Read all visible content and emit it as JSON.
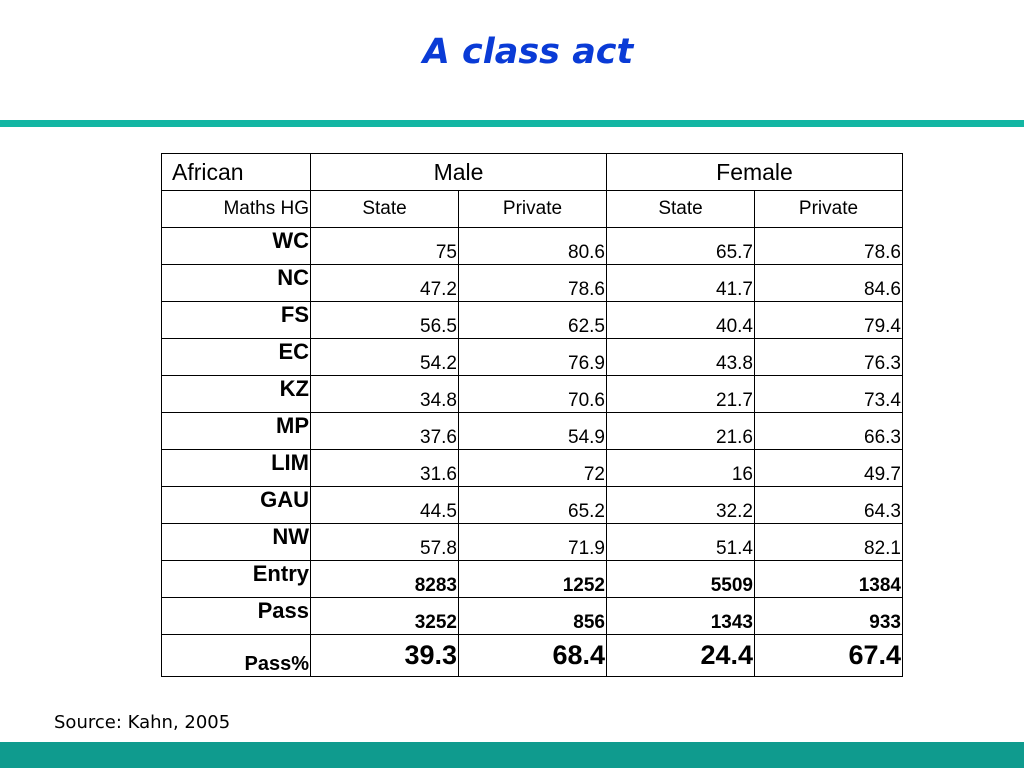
{
  "slide": {
    "title": "A class act",
    "source": "Source: Kahn, 2005",
    "colors": {
      "title": "#0a3bd6",
      "top_rule": "#13b6a3",
      "bottom_band": "#0f9b8e",
      "pass_counts": "#e10000",
      "pass_percent": "#0d8a0d"
    }
  },
  "table": {
    "corner_label": "African",
    "groups": [
      "Male",
      "Female"
    ],
    "subject_label": "Maths HG",
    "subheaders": [
      "State",
      "Private",
      "State",
      "Private"
    ],
    "rows": [
      {
        "label": "WC",
        "values": [
          "75",
          "80.6",
          "65.7",
          "78.6"
        ]
      },
      {
        "label": "NC",
        "values": [
          "47.2",
          "78.6",
          "41.7",
          "84.6"
        ]
      },
      {
        "label": "FS",
        "values": [
          "56.5",
          "62.5",
          "40.4",
          "79.4"
        ]
      },
      {
        "label": "EC",
        "values": [
          "54.2",
          "76.9",
          "43.8",
          "76.3"
        ]
      },
      {
        "label": "KZ",
        "values": [
          "34.8",
          "70.6",
          "21.7",
          "73.4"
        ]
      },
      {
        "label": "MP",
        "values": [
          "37.6",
          "54.9",
          "21.6",
          "66.3"
        ]
      },
      {
        "label": "LIM",
        "values": [
          "31.6",
          "72",
          "16",
          "49.7"
        ]
      },
      {
        "label": "GAU",
        "values": [
          "44.5",
          "65.2",
          "32.2",
          "64.3"
        ]
      },
      {
        "label": "NW",
        "values": [
          "57.8",
          "71.9",
          "51.4",
          "82.1"
        ]
      }
    ],
    "entry": {
      "label": "Entry",
      "values": [
        "8283",
        "1252",
        "5509",
        "1384"
      ]
    },
    "pass": {
      "label": "Pass",
      "values": [
        "3252",
        "856",
        "1343",
        "933"
      ]
    },
    "pass_percent": {
      "label": "Pass%",
      "values": [
        "39.3",
        "68.4",
        "24.4",
        "67.4"
      ]
    }
  }
}
